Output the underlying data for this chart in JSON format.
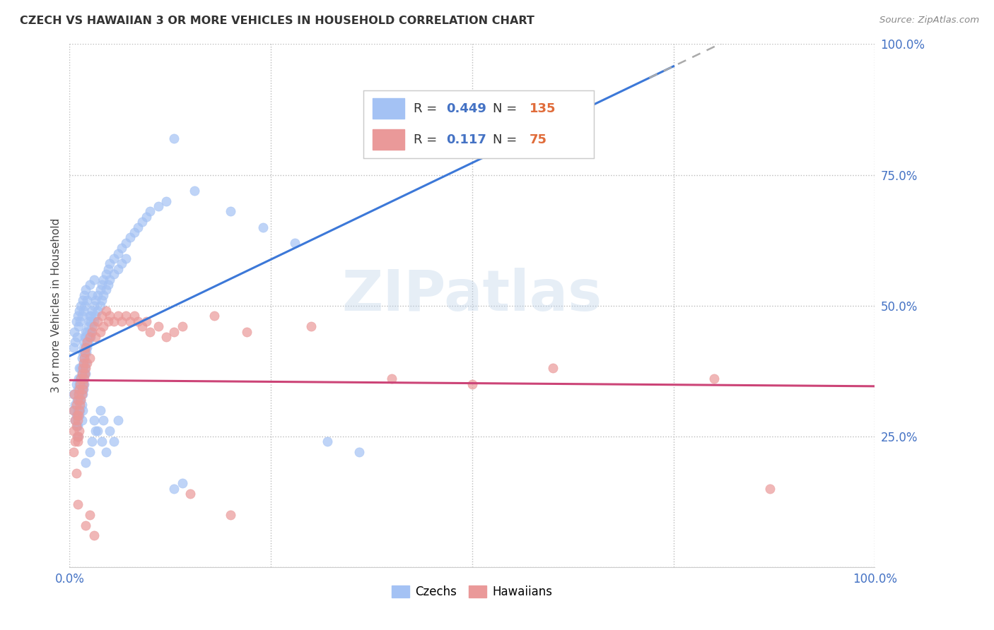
{
  "title": "CZECH VS HAWAIIAN 3 OR MORE VEHICLES IN HOUSEHOLD CORRELATION CHART",
  "source": "Source: ZipAtlas.com",
  "ylabel": "3 or more Vehicles in Household",
  "watermark": "ZIPatlas",
  "xlim": [
    0.0,
    1.0
  ],
  "ylim": [
    0.0,
    1.0
  ],
  "xticks": [
    0.0,
    0.25,
    0.5,
    0.75,
    1.0
  ],
  "yticks": [
    0.0,
    0.25,
    0.5,
    0.75,
    1.0
  ],
  "xticklabels": [
    "0.0%",
    "",
    "",
    "",
    "100.0%"
  ],
  "yticklabels_right": [
    "",
    "25.0%",
    "50.0%",
    "75.0%",
    "100.0%"
  ],
  "czech_color": "#a4c2f4",
  "czech_edge_color": "#6d9eeb",
  "hawaiian_color": "#ea9999",
  "hawaiian_edge_color": "#e06666",
  "czech_R": 0.449,
  "czech_N": 135,
  "hawaiian_R": 0.117,
  "hawaiian_N": 75,
  "trend_blue_color": "#3c78d8",
  "trend_pink_color": "#cc4477",
  "trend_dashed_color": "#aaaaaa",
  "legend_czechs": "Czechs",
  "legend_hawaiians": "Hawaiians",
  "czech_scatter": [
    [
      0.005,
      0.33
    ],
    [
      0.005,
      0.3
    ],
    [
      0.007,
      0.28
    ],
    [
      0.007,
      0.31
    ],
    [
      0.008,
      0.29
    ],
    [
      0.008,
      0.35
    ],
    [
      0.009,
      0.32
    ],
    [
      0.009,
      0.27
    ],
    [
      0.01,
      0.34
    ],
    [
      0.01,
      0.3
    ],
    [
      0.01,
      0.27
    ],
    [
      0.01,
      0.25
    ],
    [
      0.011,
      0.36
    ],
    [
      0.011,
      0.33
    ],
    [
      0.011,
      0.3
    ],
    [
      0.012,
      0.38
    ],
    [
      0.012,
      0.35
    ],
    [
      0.012,
      0.32
    ],
    [
      0.012,
      0.29
    ],
    [
      0.013,
      0.36
    ],
    [
      0.013,
      0.33
    ],
    [
      0.013,
      0.3
    ],
    [
      0.014,
      0.38
    ],
    [
      0.014,
      0.35
    ],
    [
      0.014,
      0.32
    ],
    [
      0.015,
      0.4
    ],
    [
      0.015,
      0.37
    ],
    [
      0.015,
      0.34
    ],
    [
      0.015,
      0.31
    ],
    [
      0.015,
      0.28
    ],
    [
      0.016,
      0.41
    ],
    [
      0.016,
      0.38
    ],
    [
      0.016,
      0.35
    ],
    [
      0.016,
      0.33
    ],
    [
      0.016,
      0.3
    ],
    [
      0.017,
      0.42
    ],
    [
      0.017,
      0.39
    ],
    [
      0.017,
      0.36
    ],
    [
      0.017,
      0.34
    ],
    [
      0.018,
      0.43
    ],
    [
      0.018,
      0.4
    ],
    [
      0.018,
      0.37
    ],
    [
      0.018,
      0.35
    ],
    [
      0.019,
      0.44
    ],
    [
      0.019,
      0.41
    ],
    [
      0.019,
      0.38
    ],
    [
      0.02,
      0.45
    ],
    [
      0.02,
      0.42
    ],
    [
      0.02,
      0.39
    ],
    [
      0.02,
      0.37
    ],
    [
      0.021,
      0.44
    ],
    [
      0.021,
      0.41
    ],
    [
      0.022,
      0.45
    ],
    [
      0.022,
      0.42
    ],
    [
      0.023,
      0.46
    ],
    [
      0.023,
      0.43
    ],
    [
      0.024,
      0.47
    ],
    [
      0.024,
      0.44
    ],
    [
      0.025,
      0.48
    ],
    [
      0.025,
      0.45
    ],
    [
      0.026,
      0.47
    ],
    [
      0.026,
      0.44
    ],
    [
      0.027,
      0.48
    ],
    [
      0.027,
      0.45
    ],
    [
      0.028,
      0.49
    ],
    [
      0.028,
      0.46
    ],
    [
      0.03,
      0.5
    ],
    [
      0.03,
      0.47
    ],
    [
      0.032,
      0.51
    ],
    [
      0.032,
      0.48
    ],
    [
      0.035,
      0.52
    ],
    [
      0.035,
      0.49
    ],
    [
      0.038,
      0.53
    ],
    [
      0.038,
      0.5
    ],
    [
      0.04,
      0.54
    ],
    [
      0.04,
      0.51
    ],
    [
      0.042,
      0.55
    ],
    [
      0.042,
      0.52
    ],
    [
      0.045,
      0.56
    ],
    [
      0.045,
      0.53
    ],
    [
      0.048,
      0.57
    ],
    [
      0.048,
      0.54
    ],
    [
      0.05,
      0.58
    ],
    [
      0.05,
      0.55
    ],
    [
      0.055,
      0.59
    ],
    [
      0.055,
      0.56
    ],
    [
      0.06,
      0.6
    ],
    [
      0.06,
      0.57
    ],
    [
      0.065,
      0.61
    ],
    [
      0.065,
      0.58
    ],
    [
      0.07,
      0.62
    ],
    [
      0.07,
      0.59
    ],
    [
      0.075,
      0.63
    ],
    [
      0.08,
      0.64
    ],
    [
      0.085,
      0.65
    ],
    [
      0.09,
      0.66
    ],
    [
      0.095,
      0.67
    ],
    [
      0.1,
      0.68
    ],
    [
      0.11,
      0.69
    ],
    [
      0.12,
      0.7
    ],
    [
      0.005,
      0.42
    ],
    [
      0.006,
      0.45
    ],
    [
      0.007,
      0.43
    ],
    [
      0.008,
      0.47
    ],
    [
      0.009,
      0.44
    ],
    [
      0.01,
      0.48
    ],
    [
      0.011,
      0.46
    ],
    [
      0.012,
      0.49
    ],
    [
      0.013,
      0.47
    ],
    [
      0.014,
      0.5
    ],
    [
      0.015,
      0.48
    ],
    [
      0.016,
      0.51
    ],
    [
      0.017,
      0.49
    ],
    [
      0.018,
      0.52
    ],
    [
      0.019,
      0.5
    ],
    [
      0.02,
      0.53
    ],
    [
      0.022,
      0.51
    ],
    [
      0.025,
      0.54
    ],
    [
      0.028,
      0.52
    ],
    [
      0.03,
      0.55
    ],
    [
      0.04,
      0.24
    ],
    [
      0.045,
      0.22
    ],
    [
      0.05,
      0.26
    ],
    [
      0.055,
      0.24
    ],
    [
      0.06,
      0.28
    ],
    [
      0.035,
      0.26
    ],
    [
      0.03,
      0.28
    ],
    [
      0.025,
      0.22
    ],
    [
      0.028,
      0.24
    ],
    [
      0.032,
      0.26
    ],
    [
      0.038,
      0.3
    ],
    [
      0.042,
      0.28
    ],
    [
      0.02,
      0.2
    ],
    [
      0.38,
      0.87
    ],
    [
      0.13,
      0.82
    ],
    [
      0.155,
      0.72
    ],
    [
      0.2,
      0.68
    ],
    [
      0.24,
      0.65
    ],
    [
      0.28,
      0.62
    ],
    [
      0.32,
      0.24
    ],
    [
      0.36,
      0.22
    ],
    [
      0.13,
      0.15
    ],
    [
      0.14,
      0.16
    ]
  ],
  "hawaiian_scatter": [
    [
      0.005,
      0.3
    ],
    [
      0.005,
      0.26
    ],
    [
      0.005,
      0.22
    ],
    [
      0.006,
      0.33
    ],
    [
      0.007,
      0.28
    ],
    [
      0.007,
      0.24
    ],
    [
      0.008,
      0.31
    ],
    [
      0.008,
      0.27
    ],
    [
      0.008,
      0.18
    ],
    [
      0.009,
      0.29
    ],
    [
      0.009,
      0.25
    ],
    [
      0.01,
      0.32
    ],
    [
      0.01,
      0.28
    ],
    [
      0.01,
      0.24
    ],
    [
      0.01,
      0.12
    ],
    [
      0.011,
      0.33
    ],
    [
      0.011,
      0.29
    ],
    [
      0.011,
      0.25
    ],
    [
      0.012,
      0.34
    ],
    [
      0.012,
      0.3
    ],
    [
      0.012,
      0.26
    ],
    [
      0.013,
      0.35
    ],
    [
      0.013,
      0.31
    ],
    [
      0.014,
      0.36
    ],
    [
      0.014,
      0.32
    ],
    [
      0.015,
      0.37
    ],
    [
      0.015,
      0.33
    ],
    [
      0.016,
      0.38
    ],
    [
      0.016,
      0.34
    ],
    [
      0.017,
      0.39
    ],
    [
      0.017,
      0.35
    ],
    [
      0.018,
      0.4
    ],
    [
      0.018,
      0.36
    ],
    [
      0.019,
      0.41
    ],
    [
      0.019,
      0.37
    ],
    [
      0.02,
      0.42
    ],
    [
      0.02,
      0.38
    ],
    [
      0.022,
      0.43
    ],
    [
      0.022,
      0.39
    ],
    [
      0.025,
      0.44
    ],
    [
      0.025,
      0.4
    ],
    [
      0.028,
      0.45
    ],
    [
      0.03,
      0.46
    ],
    [
      0.032,
      0.44
    ],
    [
      0.035,
      0.47
    ],
    [
      0.038,
      0.45
    ],
    [
      0.04,
      0.48
    ],
    [
      0.042,
      0.46
    ],
    [
      0.045,
      0.49
    ],
    [
      0.048,
      0.47
    ],
    [
      0.05,
      0.48
    ],
    [
      0.055,
      0.47
    ],
    [
      0.06,
      0.48
    ],
    [
      0.065,
      0.47
    ],
    [
      0.07,
      0.48
    ],
    [
      0.075,
      0.47
    ],
    [
      0.08,
      0.48
    ],
    [
      0.085,
      0.47
    ],
    [
      0.09,
      0.46
    ],
    [
      0.095,
      0.47
    ],
    [
      0.1,
      0.45
    ],
    [
      0.11,
      0.46
    ],
    [
      0.12,
      0.44
    ],
    [
      0.13,
      0.45
    ],
    [
      0.14,
      0.46
    ],
    [
      0.02,
      0.08
    ],
    [
      0.025,
      0.1
    ],
    [
      0.03,
      0.06
    ],
    [
      0.15,
      0.14
    ],
    [
      0.2,
      0.1
    ],
    [
      0.18,
      0.48
    ],
    [
      0.22,
      0.45
    ],
    [
      0.3,
      0.46
    ],
    [
      0.4,
      0.36
    ],
    [
      0.5,
      0.35
    ],
    [
      0.6,
      0.38
    ],
    [
      0.8,
      0.36
    ],
    [
      0.87,
      0.15
    ]
  ]
}
